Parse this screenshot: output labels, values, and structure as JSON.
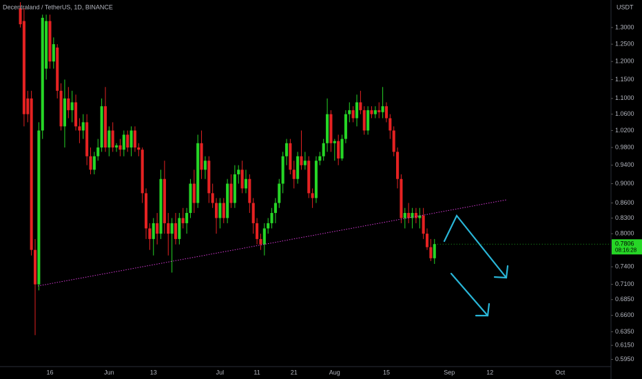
{
  "chart_data": {
    "type": "candlestick",
    "title": "Decentraland / TetherUS, 1D, BINANCE",
    "currency": "USDT",
    "countdown": "08:16:28",
    "log_scale": true,
    "up_color": "#26d626",
    "down_color": "#e52222",
    "categories": [
      null,
      null,
      null,
      null,
      null,
      null,
      null,
      null,
      null,
      null,
      null,
      null,
      null,
      "16",
      null,
      null,
      null,
      null,
      null,
      null,
      null,
      null,
      null,
      null,
      null,
      null,
      null,
      null,
      null,
      "Jun",
      null,
      null,
      null,
      null,
      null,
      null,
      null,
      null,
      null,
      null,
      null,
      "13",
      null,
      null,
      null,
      null,
      null,
      null,
      null,
      null,
      null,
      null,
      null,
      null,
      null,
      null,
      null,
      null,
      null,
      "Jul",
      null,
      null,
      null,
      null,
      null,
      null,
      null,
      null,
      null,
      "11",
      null,
      null,
      null,
      null,
      null,
      null,
      null,
      null,
      null,
      "21",
      null,
      null,
      null,
      null,
      null,
      null,
      null,
      null,
      null,
      null,
      "Aug",
      null,
      null,
      null,
      null,
      null,
      null,
      null,
      null,
      null,
      null,
      null,
      null,
      null,
      "15",
      null,
      null,
      null,
      null,
      null,
      null,
      null,
      null,
      null,
      null,
      null,
      null,
      null,
      null,
      null,
      null,
      "Sep",
      null,
      null,
      null,
      null,
      null,
      null,
      null,
      null,
      null,
      null,
      "12",
      null,
      null,
      null,
      null,
      null,
      null,
      null,
      null,
      null,
      null,
      null,
      null,
      null,
      null,
      null,
      null,
      null,
      null,
      "Oct",
      null,
      null,
      null,
      null,
      null,
      null,
      null,
      null,
      null,
      null,
      null
    ],
    "open": [
      null,
      null,
      null,
      null,
      null,
      1.36,
      1.32,
      1.1,
      1.1,
      0.77,
      0.71,
      1.02,
      1.18,
      1.32,
      1.2,
      1.24,
      1.12,
      1.03,
      1.1,
      1.07,
      1.09,
      1.03,
      1.02,
      1.04,
      0.96,
      0.93,
      0.96,
      0.98,
      1.08,
      0.98,
      1.02,
      0.98,
      0.985,
      0.975,
      1.01,
      0.98,
      1.02,
      0.98,
      0.975,
      0.88,
      0.81,
      0.79,
      0.82,
      0.8,
      0.91,
      0.82,
      0.8,
      0.82,
      0.79,
      0.83,
      0.82,
      0.84,
      0.9,
      0.86,
      0.99,
      0.93,
      0.95,
      0.88,
      0.86,
      0.83,
      0.86,
      0.83,
      0.9,
      0.86,
      0.92,
      0.93,
      0.89,
      0.91,
      0.86,
      0.82,
      0.79,
      0.78,
      0.81,
      0.82,
      0.84,
      0.86,
      0.9,
      0.96,
      0.99,
      0.93,
      0.91,
      0.96,
      0.94,
      0.95,
      0.88,
      0.87,
      0.95,
      0.96,
      0.99,
      1.06,
      0.99,
      0.995,
      0.955,
      1.0,
      1.06,
      1.07,
      1.05,
      1.09,
      1.07,
      1.02,
      1.07,
      1.06,
      1.07,
      1.065,
      1.08,
      1.05,
      1.02,
      0.97,
      0.91,
      0.83,
      0.84,
      0.83,
      0.84,
      0.83,
      0.835,
      0.8,
      0.775,
      0.755,
      null,
      null,
      null,
      null,
      null,
      null,
      null,
      null,
      null,
      null,
      null,
      null,
      null,
      null,
      null,
      null,
      null,
      null,
      null,
      null,
      null,
      null,
      null,
      null,
      null,
      null,
      null,
      null,
      null,
      null,
      null,
      null,
      null,
      null,
      null,
      null,
      null,
      null,
      null,
      null,
      null,
      null,
      null,
      null,
      null
    ],
    "high": [
      null,
      null,
      null,
      null,
      null,
      1.38,
      1.36,
      1.12,
      1.12,
      0.79,
      1.04,
      1.34,
      1.34,
      1.34,
      1.27,
      1.25,
      1.14,
      1.15,
      1.13,
      1.12,
      1.11,
      1.05,
      1.06,
      1.06,
      0.98,
      0.97,
      1.0,
      1.1,
      1.13,
      1.03,
      1.04,
      0.99,
      1.0,
      1.02,
      1.02,
      1.03,
      1.03,
      0.99,
      0.98,
      0.89,
      0.82,
      0.83,
      0.84,
      0.93,
      0.95,
      0.84,
      0.83,
      0.84,
      0.84,
      0.85,
      0.85,
      0.91,
      0.93,
      1.01,
      1.02,
      0.96,
      0.96,
      0.9,
      0.87,
      0.87,
      0.87,
      0.91,
      0.92,
      0.94,
      0.94,
      0.95,
      0.93,
      0.92,
      0.87,
      0.83,
      0.8,
      0.82,
      0.83,
      0.85,
      0.87,
      0.91,
      0.97,
      1.0,
      1.0,
      0.95,
      0.97,
      1.02,
      0.97,
      0.96,
      0.89,
      0.96,
      0.97,
      1.0,
      1.1,
      1.07,
      1.0,
      1.01,
      1.01,
      1.07,
      1.09,
      1.08,
      1.11,
      1.12,
      1.08,
      1.08,
      1.08,
      1.08,
      1.09,
      1.13,
      1.09,
      1.06,
      1.03,
      0.98,
      0.92,
      0.85,
      0.86,
      0.85,
      0.85,
      0.85,
      0.85,
      0.81,
      0.79,
      0.79,
      null,
      null,
      null,
      null,
      null,
      null,
      null,
      null,
      null,
      null,
      null,
      null,
      null,
      null,
      null,
      null,
      null,
      null,
      null,
      null,
      null,
      null,
      null,
      null,
      null,
      null,
      null,
      null,
      null,
      null,
      null,
      null,
      null,
      null,
      null,
      null,
      null,
      null,
      null,
      null,
      null,
      null,
      null,
      null,
      null
    ],
    "low": [
      null,
      null,
      null,
      null,
      null,
      1.3,
      1.03,
      1.04,
      0.76,
      0.63,
      0.7,
      1.0,
      1.15,
      1.18,
      1.18,
      1.1,
      1.02,
      0.98,
      1.05,
      1.04,
      1.02,
      0.99,
      1.0,
      0.94,
      0.92,
      0.92,
      0.95,
      0.97,
      0.97,
      0.96,
      0.97,
      0.97,
      0.96,
      0.96,
      0.97,
      0.96,
      0.97,
      0.96,
      0.86,
      0.79,
      0.77,
      0.76,
      0.78,
      0.79,
      0.8,
      0.76,
      0.73,
      0.78,
      0.78,
      0.81,
      0.8,
      0.83,
      0.84,
      0.85,
      0.91,
      0.91,
      0.86,
      0.85,
      0.8,
      0.81,
      0.82,
      0.82,
      0.85,
      0.85,
      0.9,
      0.88,
      0.88,
      0.84,
      0.8,
      0.78,
      0.77,
      0.76,
      0.8,
      0.81,
      0.82,
      0.85,
      0.88,
      0.94,
      0.92,
      0.89,
      0.9,
      0.93,
      0.93,
      0.87,
      0.85,
      0.86,
      0.94,
      0.95,
      0.97,
      0.97,
      0.95,
      0.94,
      0.95,
      0.99,
      1.04,
      1.04,
      1.03,
      1.06,
      1.01,
      1.01,
      1.05,
      1.05,
      1.05,
      1.05,
      1.04,
      1.0,
      0.96,
      0.89,
      0.82,
      0.81,
      0.82,
      0.81,
      0.82,
      0.81,
      0.79,
      0.77,
      0.75,
      0.745,
      null,
      null,
      null,
      null,
      null,
      null,
      null,
      null,
      null,
      null,
      null,
      null,
      null,
      null,
      null,
      null,
      null,
      null,
      null,
      null,
      null,
      null,
      null,
      null,
      null,
      null,
      null,
      null,
      null,
      null,
      null,
      null,
      null,
      null,
      null,
      null,
      null,
      null,
      null,
      null,
      null,
      null,
      null,
      null,
      null
    ],
    "close": [
      null,
      null,
      null,
      null,
      null,
      1.31,
      1.06,
      1.06,
      0.77,
      0.71,
      1.02,
      1.33,
      1.32,
      1.2,
      1.25,
      1.12,
      1.03,
      1.1,
      1.07,
      1.09,
      1.03,
      1.02,
      1.04,
      0.96,
      0.93,
      0.96,
      0.98,
      1.08,
      0.98,
      1.02,
      0.98,
      0.985,
      0.975,
      1.01,
      0.98,
      1.02,
      0.98,
      0.975,
      0.88,
      0.81,
      0.79,
      0.82,
      0.8,
      0.91,
      0.82,
      0.8,
      0.82,
      0.79,
      0.83,
      0.82,
      0.84,
      0.9,
      0.86,
      0.99,
      0.93,
      0.95,
      0.88,
      0.86,
      0.83,
      0.86,
      0.83,
      0.9,
      0.86,
      0.92,
      0.93,
      0.89,
      0.91,
      0.86,
      0.82,
      0.79,
      0.78,
      0.81,
      0.82,
      0.84,
      0.86,
      0.9,
      0.96,
      0.99,
      0.93,
      0.91,
      0.96,
      0.94,
      0.95,
      0.88,
      0.87,
      0.95,
      0.96,
      0.99,
      1.06,
      0.99,
      0.995,
      0.955,
      1.0,
      1.06,
      1.07,
      1.05,
      1.09,
      1.07,
      1.02,
      1.07,
      1.06,
      1.07,
      1.065,
      1.08,
      1.05,
      1.02,
      0.97,
      0.91,
      0.83,
      0.84,
      0.83,
      0.84,
      0.83,
      0.835,
      0.8,
      0.775,
      0.755,
      0.7806,
      null,
      null,
      null,
      null,
      null,
      null,
      null,
      null,
      null,
      null,
      null,
      null,
      null,
      null,
      null,
      null,
      null,
      null,
      null,
      null,
      null,
      null,
      null,
      null,
      null,
      null,
      null,
      null,
      null,
      null,
      null,
      null,
      null,
      null,
      null,
      null,
      null,
      null,
      null,
      null,
      null,
      null,
      null,
      null,
      null
    ],
    "ylim": [
      0.585,
      1.387
    ],
    "yticks": [
      {
        "value": 1.3,
        "label": "1.3000"
      },
      {
        "value": 1.25,
        "label": "1.2500"
      },
      {
        "value": 1.2,
        "label": "1.2000"
      },
      {
        "value": 1.15,
        "label": "1.1500"
      },
      {
        "value": 1.1,
        "label": "1.1000"
      },
      {
        "value": 1.06,
        "label": "1.0600"
      },
      {
        "value": 1.02,
        "label": "1.0200"
      },
      {
        "value": 0.98,
        "label": "0.9800"
      },
      {
        "value": 0.94,
        "label": "0.9400"
      },
      {
        "value": 0.9,
        "label": "0.9000"
      },
      {
        "value": 0.86,
        "label": "0.8600"
      },
      {
        "value": 0.83,
        "label": "0.8300"
      },
      {
        "value": 0.8,
        "label": "0.8000"
      },
      {
        "value": 0.74,
        "label": "0.7400"
      },
      {
        "value": 0.71,
        "label": "0.7100"
      },
      {
        "value": 0.685,
        "label": "0.6850"
      },
      {
        "value": 0.66,
        "label": "0.6600"
      },
      {
        "value": 0.635,
        "label": "0.6350"
      },
      {
        "value": 0.615,
        "label": "0.6150"
      },
      {
        "value": 0.595,
        "label": "0.5950"
      }
    ]
  }
}
